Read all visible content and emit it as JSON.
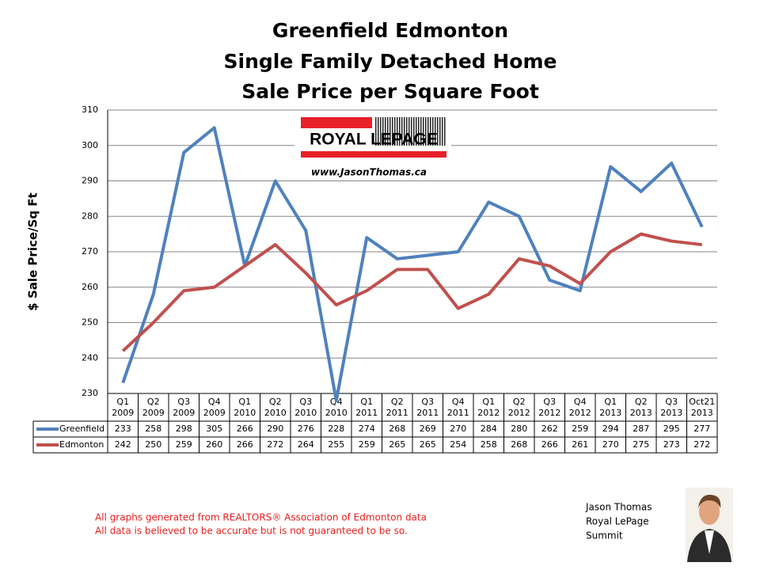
{
  "chart_data": {
    "type": "line",
    "title": [
      "Greenfield Edmonton",
      "Single Family Detached Home",
      "Sale Price per Square Foot"
    ],
    "y_label": "$ Sale Price/Sq Ft",
    "categories": [
      [
        "Q1",
        "2009"
      ],
      [
        "Q2",
        "2009"
      ],
      [
        "Q3",
        "2009"
      ],
      [
        "Q4",
        "2009"
      ],
      [
        "Q1",
        "2010"
      ],
      [
        "Q2",
        "2010"
      ],
      [
        "Q3",
        "2010"
      ],
      [
        "Q4",
        "2010"
      ],
      [
        "Q1",
        "2011"
      ],
      [
        "Q2",
        "2011"
      ],
      [
        "Q3",
        "2011"
      ],
      [
        "Q4",
        "2011"
      ],
      [
        "Q1",
        "2012"
      ],
      [
        "Q2",
        "2012"
      ],
      [
        "Q3",
        "2012"
      ],
      [
        "Q4",
        "2012"
      ],
      [
        "Q1",
        "2013"
      ],
      [
        "Q2",
        "2013"
      ],
      [
        "Q3",
        "2013"
      ],
      [
        "Oct21",
        "2013"
      ]
    ],
    "series": [
      {
        "name": "Greenfield",
        "color": "#4f81bd",
        "values": [
          233,
          258,
          298,
          305,
          266,
          290,
          276,
          228,
          274,
          268,
          269,
          270,
          284,
          280,
          262,
          259,
          294,
          287,
          295,
          277
        ]
      },
      {
        "name": "Edmonton",
        "color": "#c0504d",
        "values": [
          242,
          250,
          259,
          260,
          266,
          272,
          264,
          255,
          259,
          265,
          265,
          254,
          258,
          268,
          266,
          261,
          270,
          275,
          273,
          272
        ]
      }
    ],
    "ylim": [
      230,
      310
    ],
    "yticks": [
      230,
      240,
      250,
      260,
      270,
      280,
      290,
      300,
      310
    ],
    "grid": true
  },
  "logo": {
    "brand": "ROYAL LEPAGE",
    "url": "www.JasonThomas.ca"
  },
  "footnotes": [
    "All graphs generated from REALTORS® Association of Edmonton data",
    "All data is believed to be accurate but is not guaranteed to be so."
  ],
  "author": [
    "Jason Thomas",
    "Royal LePage",
    "Summit"
  ]
}
